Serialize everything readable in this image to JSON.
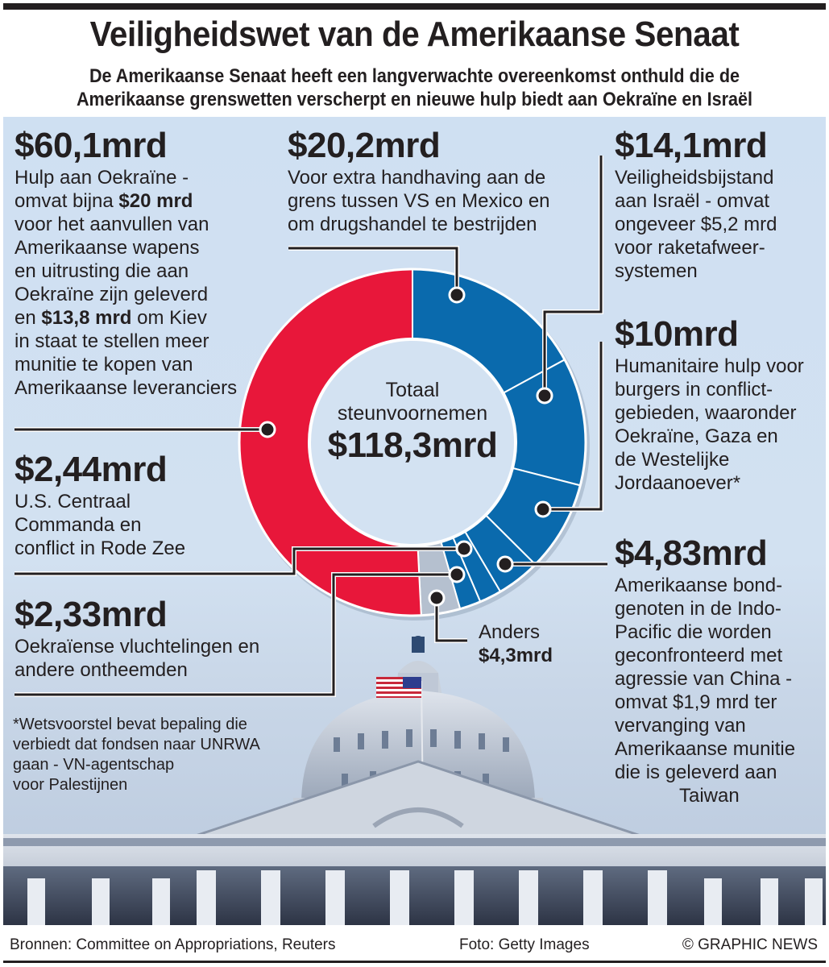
{
  "header": {
    "title": "Veiligheidswet van de Amerikaanse Senaat",
    "subtitle_line1": "De Amerikaanse Senaat heeft een langverwachte overeenkomst onthuld die de",
    "subtitle_line2": "Amerikaanse grenswetten verscherpt en nieuwe hulp biedt aan Oekraïne en Israël"
  },
  "colors": {
    "ukraine": "#e8173a",
    "blue": "#0a6aad",
    "other": "#b5c0cf",
    "background": "#cfe0f2",
    "text": "#231f20"
  },
  "center": {
    "line1": "Totaal",
    "line2": "steunvoornemen",
    "total": "$118,3mrd"
  },
  "labels": {
    "ukraine": {
      "amount": "$60,1mrd",
      "lines": [
        "Hulp aan Oekraïne -",
        "omvat bijna ",
        "$20 mrd",
        "voor het aanvullen van",
        "Amerikaanse wapens",
        "en uitrusting die aan",
        "Oekraïne zijn geleverd",
        "en ",
        "$13,8 mrd",
        " om Kiev",
        "in staat te stellen meer",
        "munitie te kopen van",
        "Amerikaanse leveranciers"
      ]
    },
    "border": {
      "amount": "$20,2mrd",
      "lines": [
        "Voor extra handhaving aan de",
        "grens tussen VS en Mexico en",
        "om drugshandel te bestrijden"
      ]
    },
    "israel": {
      "amount": "$14,1mrd",
      "lines": [
        "Veiligheidsbijstand",
        "aan Israël - omvat",
        "ongeveer $5,2 mrd",
        "voor raketafweer-",
        "systemen"
      ]
    },
    "humanitarian": {
      "amount": "$10mrd",
      "lines": [
        "Humanitaire hulp voor",
        "burgers in conflict-",
        "gebieden, waaronder",
        "Oekraïne, Gaza en",
        "de Westelijke",
        "Jordaanoever*"
      ]
    },
    "indopacific": {
      "amount": "$4,83mrd",
      "lines": [
        "Amerikaanse bond-",
        "genoten in de Indo-",
        "Pacific die worden",
        "geconfronteerd met",
        "agressie van China -",
        "omvat $1,9 mrd ter",
        "vervanging van",
        "Amerikaanse munitie",
        "die is geleverd aan",
        "Taiwan"
      ]
    },
    "centcom": {
      "amount": "$2,44mrd",
      "lines": [
        "U.S. Centraal",
        "Commanda en",
        "conflict in Rode Zee"
      ]
    },
    "refugees": {
      "amount": "$2,33mrd",
      "lines": [
        "Oekraïense vluchtelingen en",
        "andere ontheemden"
      ]
    },
    "other": {
      "label": "Anders",
      "amount": "$4,3mrd"
    }
  },
  "footnote": {
    "lines": [
      "*Wetsvoorstel bevat bepaling die",
      "verbiedt dat fondsen naar UNRWA",
      "gaan - VN-agentschap",
      "voor Palestijnen"
    ]
  },
  "footer": {
    "sources": "Bronnen: Committee on Appropriations, Reuters",
    "photo": "Foto: Getty Images",
    "credit": "© GRAPHIC NEWS"
  },
  "chart_data": {
    "type": "pie",
    "subtype": "donut",
    "title": "Veiligheidswet van de Amerikaanse Senaat",
    "total_label": "Totaal steunvoornemen",
    "total": 118.3,
    "unit": "mrd USD",
    "direction": "clockwise from top",
    "slices": [
      {
        "name": "Grens VS-Mexico & drugshandel",
        "value": 20.2,
        "color": "#0a6aad"
      },
      {
        "name": "Veiligheidsbijstand Israël",
        "value": 14.1,
        "color": "#0a6aad"
      },
      {
        "name": "Humanitaire hulp",
        "value": 10.0,
        "color": "#0a6aad"
      },
      {
        "name": "Bondgenoten Indo-Pacific",
        "value": 4.83,
        "color": "#0a6aad"
      },
      {
        "name": "U.S. Centraal Commando / Rode Zee",
        "value": 2.44,
        "color": "#0a6aad"
      },
      {
        "name": "Oekraïense vluchtelingen",
        "value": 2.33,
        "color": "#0a6aad"
      },
      {
        "name": "Anders",
        "value": 4.3,
        "color": "#b5c0cf"
      },
      {
        "name": "Hulp aan Oekraïne",
        "value": 60.1,
        "color": "#e8173a"
      }
    ]
  }
}
